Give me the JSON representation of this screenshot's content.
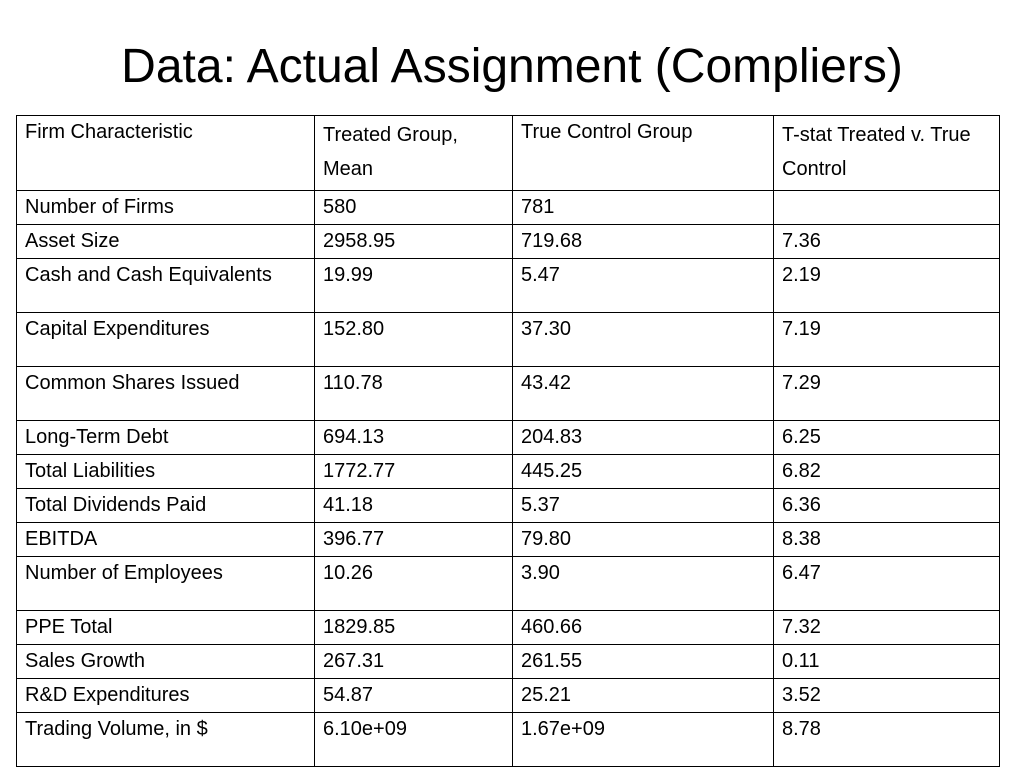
{
  "title": "Data: Actual Assignment (Compliers)",
  "table": {
    "headers": [
      "Firm Characteristic",
      "Treated Group, Mean",
      "True Control Group",
      "T-stat Treated v. True Control"
    ],
    "rows": [
      [
        "Number of Firms",
        "580",
        "781",
        ""
      ],
      [
        "Asset Size",
        "2958.95",
        "719.68",
        "7.36"
      ],
      [
        "Cash and Cash Equivalents",
        "19.99",
        "5.47",
        "2.19"
      ],
      [
        "Capital Expenditures",
        "152.80",
        "37.30",
        "7.19"
      ],
      [
        "Common Shares Issued",
        "110.78",
        "43.42",
        "7.29"
      ],
      [
        "Long-Term Debt",
        "694.13",
        "204.83",
        "6.25"
      ],
      [
        "Total Liabilities",
        "1772.77",
        "445.25",
        "6.82"
      ],
      [
        "Total Dividends Paid",
        "41.18",
        "5.37",
        "6.36"
      ],
      [
        "EBITDA",
        "396.77",
        "79.80",
        "8.38"
      ],
      [
        "Number of Employees",
        "10.26",
        "3.90",
        "6.47"
      ],
      [
        "PPE Total",
        "1829.85",
        "460.66",
        "7.32"
      ],
      [
        "Sales Growth",
        "267.31",
        "261.55",
        "0.11"
      ],
      [
        "R&D Expenditures",
        "54.87",
        "25.21",
        "3.52"
      ],
      [
        "Trading Volume, in $",
        "6.10e+09",
        "1.67e+09",
        "8.78"
      ]
    ]
  }
}
